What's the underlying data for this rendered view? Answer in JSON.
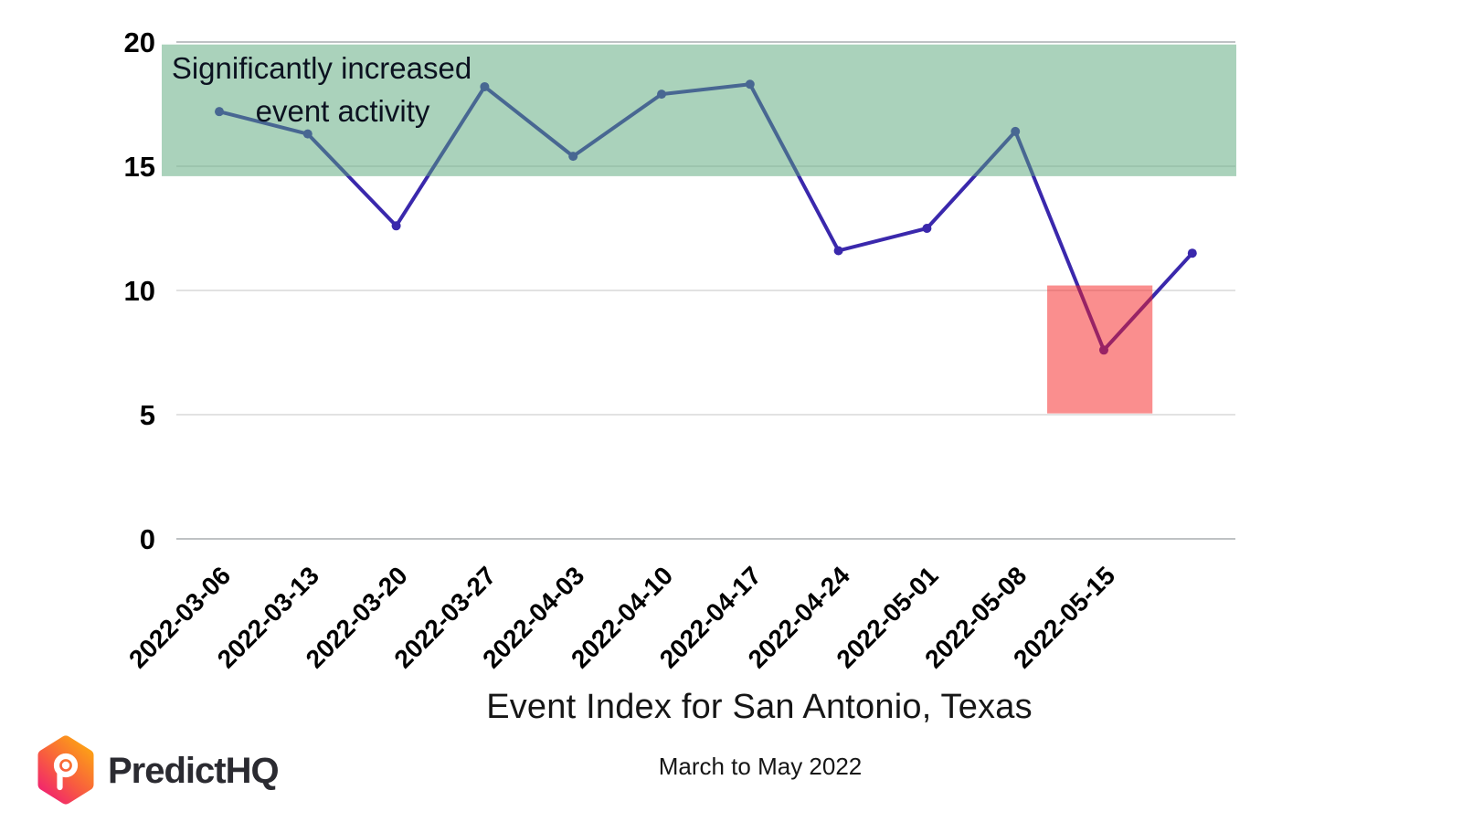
{
  "chart_data": {
    "type": "line",
    "title": "Event Index for San Antonio, Texas",
    "subtitle": "March to May 2022",
    "xlabel": "",
    "ylabel": "",
    "ylim": [
      0,
      20
    ],
    "yticks": [
      0,
      5,
      10,
      15,
      20
    ],
    "ytick_labels": [
      "0",
      "5",
      "10",
      "15",
      "20"
    ],
    "grid": true,
    "legend": "none",
    "categories": [
      "2022-03-06",
      "2022-03-13",
      "2022-03-20",
      "2022-03-27",
      "2022-04-03",
      "2022-04-10",
      "2022-04-17",
      "2022-04-24",
      "2022-05-01",
      "2022-05-08",
      "2022-05-15",
      ""
    ],
    "series": [
      {
        "name": "Event Index",
        "color": "#3a28ac",
        "marker": "circle",
        "values": [
          17.2,
          16.3,
          12.6,
          18.2,
          15.4,
          17.9,
          18.3,
          11.6,
          12.5,
          16.4,
          7.6,
          11.5
        ]
      }
    ],
    "annotations": {
      "green_band": {
        "label_line1": "Significantly increased",
        "label_line2": "event activity",
        "value_from": 14.6,
        "value_to": 19.9,
        "fill": "rgba(85,165,120,0.5)",
        "label_color": "#0c1220"
      },
      "red_box": {
        "value_from": 5.05,
        "value_to": 10.2,
        "index_from": 9.36,
        "index_to": 10.55,
        "fill": "rgba(245,30,30,0.5)"
      }
    },
    "axis_text_color": "#000000",
    "gridline_color": "#d9d9d9",
    "edge_gridline_color": "#bfc2c4"
  },
  "branding": {
    "logo_text": "PredictHQ",
    "logo_icon": "predicthq-hex-pin-icon",
    "gradient_from": "#FC9E17",
    "gradient_mid": "#F85D3F",
    "gradient_to": "#F1256E",
    "text_color": "#2b2b31"
  }
}
